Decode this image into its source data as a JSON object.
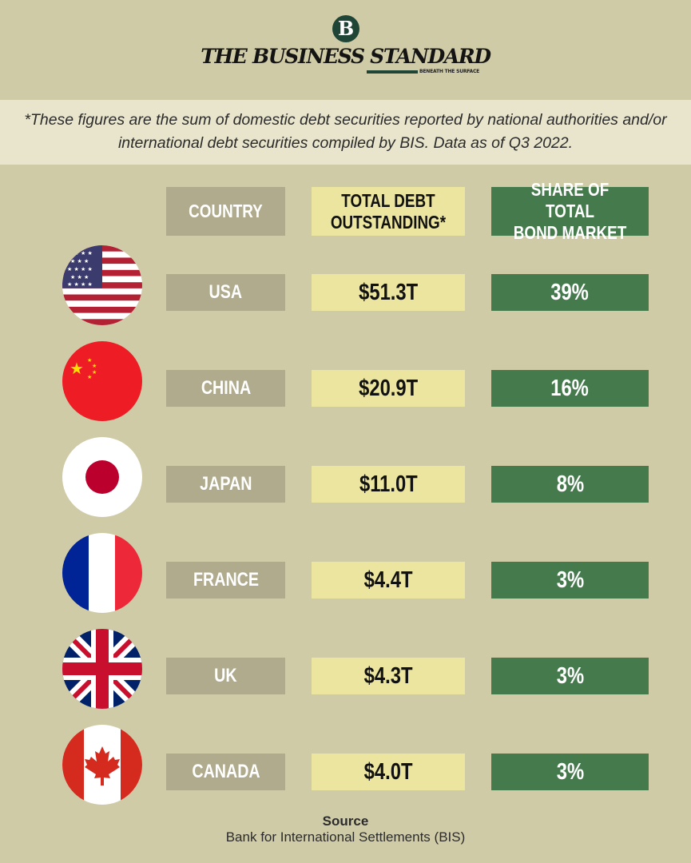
{
  "header": {
    "logo_letter": "B",
    "brand": "THE BUSINESS STANDARD",
    "tagline": "BENEATH THE SURFACE"
  },
  "note": "*These figures are the sum of domestic debt securities reported by national authorities and/or international debt securities compiled by BIS. Data as of Q3 2022.",
  "columns": {
    "country": "COUNTRY",
    "debt_line1": "TOTAL DEBT",
    "debt_line2": "OUTSTANDING*",
    "share_line1": "SHARE OF TOTAL",
    "share_line2": "BOND MARKET"
  },
  "chart_data": {
    "type": "table",
    "columns": [
      "COUNTRY",
      "TOTAL DEBT OUTSTANDING*",
      "SHARE OF TOTAL BOND MARKET"
    ],
    "rows": [
      {
        "country": "USA",
        "debt": "$51.3T",
        "share": "39%",
        "flag": "usa-flag-icon"
      },
      {
        "country": "CHINA",
        "debt": "$20.9T",
        "share": "16%",
        "flag": "china-flag-icon"
      },
      {
        "country": "JAPAN",
        "debt": "$11.0T",
        "share": "8%",
        "flag": "japan-flag-icon"
      },
      {
        "country": "FRANCE",
        "debt": "$4.4T",
        "share": "3%",
        "flag": "france-flag-icon"
      },
      {
        "country": "UK",
        "debt": "$4.3T",
        "share": "3%",
        "flag": "uk-flag-icon"
      },
      {
        "country": "CANADA",
        "debt": "$4.0T",
        "share": "3%",
        "flag": "canada-flag-icon"
      }
    ]
  },
  "source": {
    "title": "Source",
    "text": "Bank for International Settlements (BIS)"
  },
  "colors": {
    "background": "#d0cba7",
    "country_cell": "#b0ab8c",
    "debt_cell": "#ebe5a0",
    "share_cell": "#457a4d",
    "brand_green": "#1f4537"
  }
}
